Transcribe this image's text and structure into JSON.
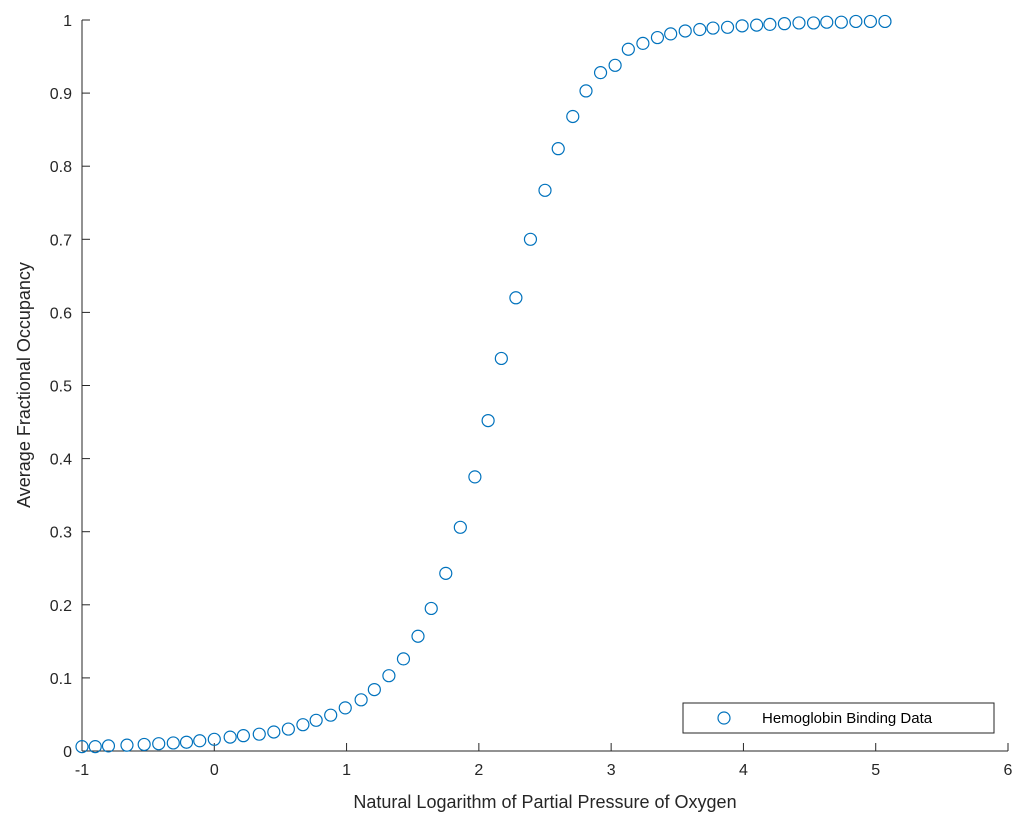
{
  "chart_data": {
    "type": "scatter",
    "title": "",
    "xlabel": "Natural Logarithm of Partial Pressure of Oxygen",
    "ylabel": "Average Fractional Occupancy",
    "xlim": [
      -1,
      6
    ],
    "ylim": [
      0,
      1
    ],
    "xticks": [
      -1,
      0,
      1,
      2,
      3,
      4,
      5,
      6
    ],
    "xtick_labels": [
      "-1",
      "0",
      "1",
      "2",
      "3",
      "4",
      "5",
      "6"
    ],
    "yticks": [
      0,
      0.1,
      0.2,
      0.3,
      0.4,
      0.5,
      0.6,
      0.7,
      0.8,
      0.9,
      1
    ],
    "ytick_labels": [
      "0",
      "0.1",
      "0.2",
      "0.3",
      "0.4",
      "0.5",
      "0.6",
      "0.7",
      "0.8",
      "0.9",
      "1"
    ],
    "grid": false,
    "legend_position": "bottom-right",
    "marker": "open-circle",
    "colors": {
      "marker": "#0072BD",
      "axis": "#262626"
    },
    "series": [
      {
        "name": "Hemoglobin Binding Data",
        "x": [
          -1.0,
          -0.9,
          -0.8,
          -0.66,
          -0.53,
          -0.42,
          -0.31,
          -0.21,
          -0.11,
          0.0,
          0.12,
          0.22,
          0.34,
          0.45,
          0.56,
          0.67,
          0.77,
          0.88,
          0.99,
          1.11,
          1.21,
          1.32,
          1.43,
          1.54,
          1.64,
          1.75,
          1.86,
          1.97,
          2.07,
          2.17,
          2.28,
          2.39,
          2.5,
          2.6,
          2.71,
          2.81,
          2.92,
          3.03,
          3.13,
          3.24,
          3.35,
          3.45,
          3.56,
          3.67,
          3.77,
          3.88,
          3.99,
          4.1,
          4.2,
          4.31,
          4.42,
          4.53,
          4.63,
          4.74,
          4.85,
          4.96,
          5.07
        ],
        "y": [
          0.006,
          0.006,
          0.007,
          0.008,
          0.009,
          0.01,
          0.011,
          0.012,
          0.014,
          0.016,
          0.019,
          0.021,
          0.023,
          0.026,
          0.03,
          0.036,
          0.042,
          0.049,
          0.059,
          0.07,
          0.084,
          0.103,
          0.126,
          0.157,
          0.195,
          0.243,
          0.306,
          0.375,
          0.452,
          0.537,
          0.62,
          0.7,
          0.767,
          0.824,
          0.868,
          0.903,
          0.928,
          0.938,
          0.96,
          0.968,
          0.976,
          0.981,
          0.985,
          0.987,
          0.989,
          0.99,
          0.992,
          0.993,
          0.994,
          0.995,
          0.996,
          0.996,
          0.997,
          0.997,
          0.998,
          0.998,
          0.998
        ]
      }
    ]
  }
}
